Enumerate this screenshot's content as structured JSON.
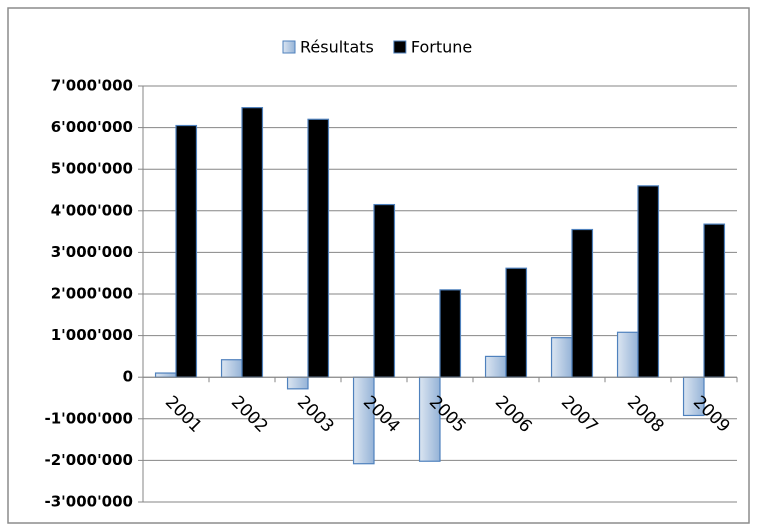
{
  "chart_data": {
    "type": "bar",
    "categories": [
      "2001",
      "2002",
      "2003",
      "2004",
      "2005",
      "2006",
      "2007",
      "2008",
      "2009"
    ],
    "series": [
      {
        "name": "Résultats",
        "color": "#95b3d7",
        "values": [
          100000,
          420000,
          -280000,
          -2080000,
          -2020000,
          500000,
          950000,
          1080000,
          -920000
        ]
      },
      {
        "name": "Fortune",
        "color": "#000000",
        "values": [
          6050000,
          6480000,
          6200000,
          4150000,
          2100000,
          2620000,
          3550000,
          4600000,
          3680000
        ]
      }
    ],
    "ylim": [
      -3000000,
      7000000
    ],
    "yticks": [
      {
        "value": -3000000,
        "label": "-3'000'000"
      },
      {
        "value": -2000000,
        "label": "-2'000'000"
      },
      {
        "value": -1000000,
        "label": "-1'000'000"
      },
      0,
      {
        "value": 1000000,
        "label": "1'000'000"
      },
      {
        "value": 2000000,
        "label": "2'000'000"
      },
      {
        "value": 3000000,
        "label": "3'000'000"
      },
      {
        "value": 4000000,
        "label": "4'000'000"
      },
      {
        "value": 5000000,
        "label": "5'000'000"
      },
      {
        "value": 6000000,
        "label": "6'000'000"
      },
      {
        "value": 7000000,
        "label": "7'000'000"
      }
    ],
    "grid": true,
    "legend": "top"
  }
}
